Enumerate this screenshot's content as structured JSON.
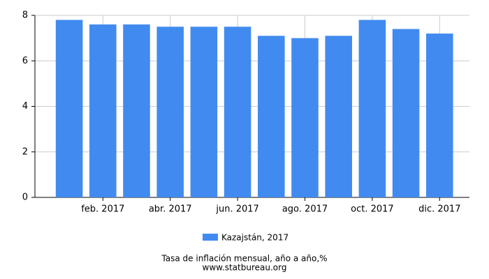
{
  "chart_data": {
    "type": "bar",
    "title": "Tasa de inflación mensual, año a año,%",
    "source": "www.statbureau.org",
    "categories": [
      null,
      "feb. 2017",
      null,
      "abr. 2017",
      null,
      "jun. 2017",
      null,
      "ago. 2017",
      null,
      "oct. 2017",
      null,
      "dic. 2017"
    ],
    "series": [
      {
        "name": "Kazajstán, 2017",
        "color": "#418bf0",
        "values": [
          7.8,
          7.6,
          7.6,
          7.5,
          7.5,
          7.5,
          7.1,
          7.0,
          7.1,
          7.8,
          7.4,
          7.2
        ]
      }
    ],
    "ylim": [
      0,
      8
    ],
    "yticks": [
      0,
      2,
      4,
      6,
      8
    ],
    "grid": true
  }
}
